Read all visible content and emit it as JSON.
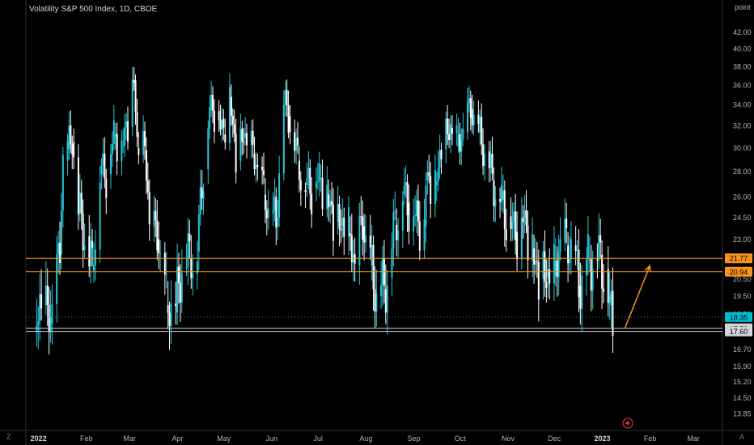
{
  "header": {
    "title": "Volatility S&P 500 Index, 1D, CBOE",
    "unit_label": "point"
  },
  "corners": {
    "bottom_left": "Z",
    "bottom_right": "A"
  },
  "colors": {
    "candle": "#26c6da",
    "candle_alt": "#ffffff",
    "resistance": "#f7931a",
    "support": "#d1d4dc",
    "arrow": "#f7931a",
    "last_price": "#00bcd4"
  },
  "icons": {
    "flash": "lightning-icon"
  },
  "chart_data": {
    "type": "candlestick",
    "title": "Volatility S&P 500 Index, 1D, CBOE",
    "ylabel": "point",
    "ylim": [
      13.2,
      44.0
    ],
    "y_ticks": [
      "42.00",
      "40.00",
      "38.00",
      "36.00",
      "34.00",
      "32.00",
      "30.00",
      "28.00",
      "26.00",
      "24.50",
      "23.00",
      "20.50",
      "19.50",
      "18.50",
      "16.70",
      "15.90",
      "15.20",
      "14.50",
      "13.85"
    ],
    "y_tick_values": [
      42.0,
      40.0,
      38.0,
      36.0,
      34.0,
      32.0,
      30.0,
      28.0,
      26.0,
      24.5,
      23.0,
      20.5,
      19.5,
      18.5,
      16.7,
      15.9,
      15.2,
      14.5,
      13.85
    ],
    "x_ticks": [
      "2022",
      "Feb",
      "Mar",
      "Apr",
      "May",
      "Jun",
      "Jul",
      "Aug",
      "Sep",
      "Oct",
      "Nov",
      "Dec",
      "2023",
      "Feb",
      "Mar"
    ],
    "x_tick_dates": [
      "2022-01-01",
      "2022-02-01",
      "2022-03-01",
      "2022-04-01",
      "2022-05-01",
      "2022-06-01",
      "2022-07-01",
      "2022-08-01",
      "2022-09-01",
      "2022-10-01",
      "2022-11-01",
      "2022-12-01",
      "2023-01-01",
      "2023-02-01",
      "2023-03-01"
    ],
    "x_range": [
      "2021-12-28",
      "2023-03-24"
    ],
    "bold_ticks": [
      "2022",
      "2023"
    ],
    "series": [
      {
        "points": [
          [
            "2022-01-03",
            17.6
          ],
          [
            "2022-01-07",
            19.0
          ],
          [
            "2022-01-13",
            18.0
          ],
          [
            "2022-01-19",
            22.0
          ],
          [
            "2022-01-21",
            28.9
          ],
          [
            "2022-01-24",
            29.9
          ],
          [
            "2022-01-27",
            30.5
          ],
          [
            "2022-01-31",
            24.8
          ],
          [
            "2022-02-04",
            23.2
          ],
          [
            "2022-02-09",
            21.0
          ],
          [
            "2022-02-14",
            27.8
          ],
          [
            "2022-02-18",
            27.8
          ],
          [
            "2022-02-23",
            31.0
          ],
          [
            "2022-02-28",
            30.2
          ],
          [
            "2022-03-04",
            31.9
          ],
          [
            "2022-03-08",
            36.5
          ],
          [
            "2022-03-10",
            30.0
          ],
          [
            "2022-03-15",
            29.8
          ],
          [
            "2022-03-18",
            23.9
          ],
          [
            "2022-03-23",
            23.0
          ],
          [
            "2022-03-29",
            19.0
          ],
          [
            "2022-04-04",
            18.6
          ],
          [
            "2022-04-08",
            21.2
          ],
          [
            "2022-04-13",
            21.8
          ],
          [
            "2022-04-18",
            22.2
          ],
          [
            "2022-04-22",
            28.2
          ],
          [
            "2022-04-26",
            33.5
          ],
          [
            "2022-04-29",
            33.4
          ],
          [
            "2022-05-05",
            31.2
          ],
          [
            "2022-05-09",
            34.8
          ],
          [
            "2022-05-13",
            28.9
          ],
          [
            "2022-05-18",
            30.9
          ],
          [
            "2022-05-24",
            29.5
          ],
          [
            "2022-05-31",
            26.2
          ],
          [
            "2022-06-03",
            24.8
          ],
          [
            "2022-06-08",
            23.9
          ],
          [
            "2022-06-13",
            34.0
          ],
          [
            "2022-06-16",
            32.9
          ],
          [
            "2022-06-22",
            28.9
          ],
          [
            "2022-06-27",
            26.9
          ],
          [
            "2022-07-01",
            26.7
          ],
          [
            "2022-07-06",
            27.5
          ],
          [
            "2022-07-11",
            26.2
          ],
          [
            "2022-07-15",
            24.2
          ],
          [
            "2022-07-20",
            23.9
          ],
          [
            "2022-07-25",
            23.4
          ],
          [
            "2022-07-29",
            21.3
          ],
          [
            "2022-08-03",
            23.9
          ],
          [
            "2022-08-08",
            21.3
          ],
          [
            "2022-08-12",
            19.5
          ],
          [
            "2022-08-17",
            19.9
          ],
          [
            "2022-08-19",
            20.6
          ],
          [
            "2022-08-24",
            24.0
          ],
          [
            "2022-08-29",
            26.2
          ],
          [
            "2022-09-01",
            25.6
          ],
          [
            "2022-09-06",
            24.6
          ],
          [
            "2022-09-12",
            23.9
          ],
          [
            "2022-09-13",
            27.3
          ],
          [
            "2022-09-19",
            26.9
          ],
          [
            "2022-09-23",
            29.9
          ],
          [
            "2022-09-29",
            31.8
          ],
          [
            "2022-10-03",
            30.1
          ],
          [
            "2022-10-07",
            31.4
          ],
          [
            "2022-10-12",
            33.6
          ],
          [
            "2022-10-17",
            31.4
          ],
          [
            "2022-10-21",
            29.7
          ],
          [
            "2022-10-26",
            27.3
          ],
          [
            "2022-11-01",
            25.8
          ],
          [
            "2022-11-04",
            24.6
          ],
          [
            "2022-11-10",
            23.5
          ],
          [
            "2022-11-15",
            24.5
          ],
          [
            "2022-11-21",
            22.4
          ],
          [
            "2022-11-25",
            20.5
          ],
          [
            "2022-11-30",
            20.6
          ],
          [
            "2022-12-05",
            20.7
          ],
          [
            "2022-12-09",
            22.8
          ],
          [
            "2022-12-13",
            22.6
          ],
          [
            "2022-12-16",
            22.6
          ],
          [
            "2022-12-21",
            20.1
          ],
          [
            "2022-12-27",
            21.6
          ],
          [
            "2022-12-30",
            21.7
          ],
          [
            "2023-01-04",
            22.0
          ],
          [
            "2023-01-06",
            21.1
          ],
          [
            "2023-01-10",
            19.0
          ],
          [
            "2023-01-12",
            18.35
          ]
        ]
      }
    ],
    "horizontal_levels": [
      {
        "value": 21.77,
        "label": "21.77",
        "kind": "resistance"
      },
      {
        "value": 20.94,
        "label": "20.94",
        "kind": "resistance"
      },
      {
        "value": 17.76,
        "label": "17.76",
        "kind": "support"
      },
      {
        "value": 17.6,
        "label": "17.60",
        "kind": "support"
      }
    ],
    "last_price": {
      "value": 18.35,
      "label": "18.35"
    },
    "arrow": {
      "from_date": "2023-01-20",
      "from_value": 17.8,
      "to_date": "2023-02-05",
      "to_value": 21.3
    }
  }
}
